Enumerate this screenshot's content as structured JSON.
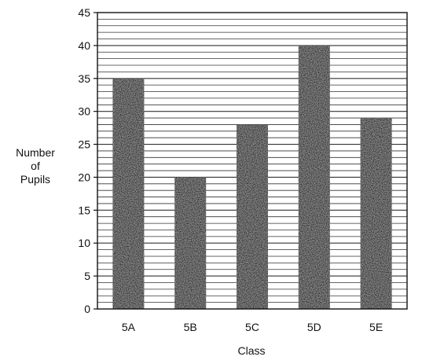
{
  "chart_data": {
    "type": "bar",
    "title": "",
    "xlabel": "Class",
    "ylabel_lines": [
      "Number",
      "of",
      "Pupils"
    ],
    "categories": [
      "5A",
      "5B",
      "5C",
      "5D",
      "5E"
    ],
    "values": [
      35,
      20,
      28,
      40,
      29
    ],
    "ylim": [
      0,
      45
    ],
    "yticks": [
      0,
      5,
      10,
      15,
      20,
      25,
      30,
      35,
      40,
      45
    ],
    "grid": true,
    "legend": "none",
    "bar_color": "#262626",
    "grid_color": "#333333"
  }
}
